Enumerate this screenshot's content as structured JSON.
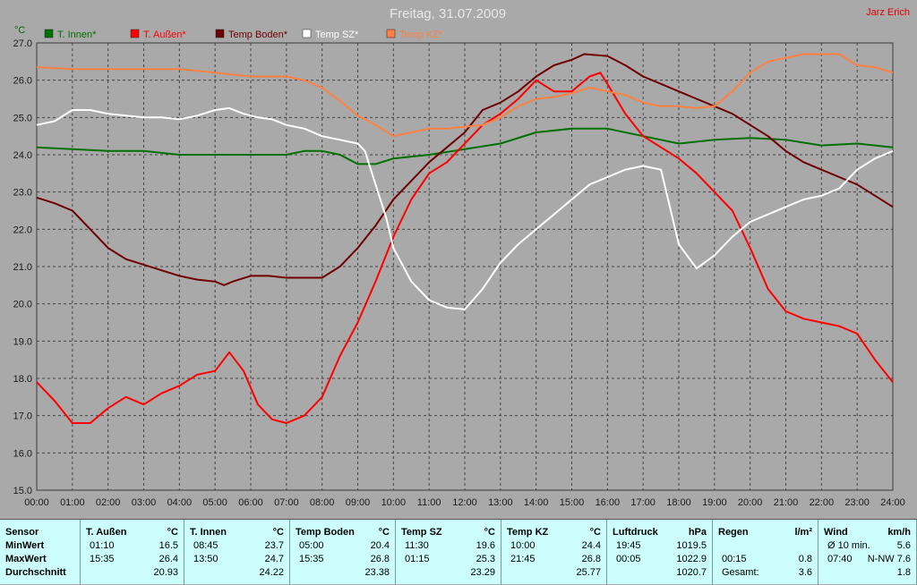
{
  "title": "Freitag, 31.07.2009",
  "author": "Jarz Erich",
  "chart_data": {
    "type": "line",
    "title": "Freitag, 31.07.2009",
    "ylabel": "°C",
    "xlabel": "",
    "ylim": [
      15.0,
      27.0
    ],
    "xlim": [
      0,
      24
    ],
    "grid": true,
    "legend_position": "top",
    "y_ticks": [
      "15.0",
      "16.0",
      "17.0",
      "18.0",
      "19.0",
      "20.0",
      "21.0",
      "22.0",
      "23.0",
      "24.0",
      "25.0",
      "26.0",
      "27.0"
    ],
    "x_ticks": [
      "00:00",
      "01:00",
      "02:00",
      "03:00",
      "04:00",
      "05:00",
      "06:00",
      "07:00",
      "08:00",
      "09:00",
      "10:00",
      "11:00",
      "12:00",
      "13:00",
      "14:00",
      "15:00",
      "16:00",
      "17:00",
      "18:00",
      "19:00",
      "20:00",
      "21:00",
      "22:00",
      "23:00",
      "24:00"
    ],
    "series": [
      {
        "name": "T. Innen*",
        "color": "#007000",
        "x": [
          0,
          1,
          2,
          3,
          4,
          5,
          6,
          7,
          7.5,
          8,
          8.5,
          9,
          9.5,
          10,
          11,
          12,
          13,
          14,
          15,
          16,
          17,
          18,
          19,
          20,
          21,
          22,
          23,
          24
        ],
        "y": [
          24.2,
          24.15,
          24.1,
          24.1,
          24.0,
          24.0,
          24.0,
          24.0,
          24.1,
          24.1,
          24.0,
          23.75,
          23.75,
          23.9,
          24.0,
          24.15,
          24.3,
          24.6,
          24.7,
          24.7,
          24.5,
          24.3,
          24.4,
          24.45,
          24.4,
          24.25,
          24.3,
          24.2
        ]
      },
      {
        "name": "T. Außen*",
        "color": "#ff0000",
        "x": [
          0,
          0.5,
          1,
          1.5,
          2,
          2.5,
          3,
          3.5,
          4,
          4.5,
          5,
          5.4,
          5.8,
          6.2,
          6.6,
          7,
          7.5,
          8,
          8.5,
          9,
          9.5,
          10,
          10.5,
          11,
          11.5,
          12,
          12.5,
          13,
          13.5,
          14,
          14.5,
          15,
          15.5,
          15.8,
          16,
          16.5,
          17,
          17.5,
          18,
          18.5,
          19,
          19.5,
          20,
          20.5,
          21,
          21.5,
          22,
          22.5,
          23,
          23.5,
          24
        ],
        "y": [
          17.9,
          17.4,
          16.8,
          16.8,
          17.2,
          17.5,
          17.3,
          17.6,
          17.8,
          18.1,
          18.2,
          18.7,
          18.2,
          17.3,
          16.9,
          16.8,
          17.0,
          17.5,
          18.6,
          19.5,
          20.6,
          21.8,
          22.8,
          23.5,
          23.8,
          24.3,
          24.8,
          25.1,
          25.5,
          26.0,
          25.7,
          25.7,
          26.1,
          26.2,
          25.9,
          25.1,
          24.5,
          24.2,
          23.9,
          23.5,
          23.0,
          22.5,
          21.5,
          20.4,
          19.8,
          19.6,
          19.5,
          19.4,
          19.2,
          18.5,
          17.9
        ]
      },
      {
        "name": "Temp Boden*",
        "color": "#700000",
        "x": [
          0,
          0.5,
          1,
          1.5,
          2,
          2.5,
          3,
          3.5,
          4,
          4.5,
          5,
          5.25,
          5.5,
          6,
          6.5,
          7,
          7.5,
          8,
          8.5,
          9,
          9.5,
          10,
          10.5,
          11,
          11.5,
          12,
          12.5,
          13,
          13.5,
          14,
          14.5,
          15,
          15.35,
          16,
          16.5,
          17,
          17.5,
          18,
          18.5,
          19,
          19.5,
          20,
          20.5,
          21,
          21.5,
          22,
          22.5,
          23,
          23.5,
          24
        ],
        "y": [
          22.85,
          22.7,
          22.5,
          22.0,
          21.5,
          21.2,
          21.05,
          20.9,
          20.75,
          20.65,
          20.6,
          20.5,
          20.6,
          20.75,
          20.75,
          20.7,
          20.7,
          20.7,
          21.0,
          21.5,
          22.1,
          22.8,
          23.3,
          23.8,
          24.2,
          24.6,
          25.2,
          25.4,
          25.7,
          26.1,
          26.4,
          26.55,
          26.7,
          26.65,
          26.4,
          26.1,
          25.9,
          25.7,
          25.5,
          25.3,
          25.1,
          24.8,
          24.5,
          24.1,
          23.8,
          23.6,
          23.4,
          23.2,
          22.9,
          22.6
        ]
      },
      {
        "name": "Temp SZ*",
        "color": "#ffffff",
        "x": [
          0,
          0.5,
          1,
          1.5,
          2,
          2.5,
          3,
          3.5,
          4,
          4.5,
          5,
          5.4,
          5.8,
          6.2,
          6.6,
          7,
          7.5,
          8,
          8.5,
          9,
          9.2,
          9.5,
          9.8,
          10,
          10.5,
          11,
          11.5,
          12,
          12.5,
          13,
          13.5,
          14,
          14.5,
          15,
          15.5,
          16,
          16.5,
          17,
          17.5,
          18,
          18.5,
          19,
          19.5,
          20,
          20.5,
          21,
          21.5,
          22,
          22.5,
          23,
          23.5,
          24
        ],
        "y": [
          24.8,
          24.9,
          25.2,
          25.2,
          25.1,
          25.05,
          25.0,
          25.0,
          24.95,
          25.05,
          25.2,
          25.25,
          25.1,
          25.0,
          24.95,
          24.8,
          24.7,
          24.5,
          24.4,
          24.3,
          24.1,
          23.2,
          22.3,
          21.5,
          20.6,
          20.1,
          19.9,
          19.85,
          20.4,
          21.1,
          21.6,
          22.0,
          22.4,
          22.8,
          23.2,
          23.4,
          23.6,
          23.7,
          23.6,
          21.6,
          20.95,
          21.3,
          21.8,
          22.2,
          22.4,
          22.6,
          22.8,
          22.9,
          23.1,
          23.6,
          23.9,
          24.1
        ]
      },
      {
        "name": "Temp KZ*",
        "color": "#ff8040",
        "x": [
          0,
          1,
          2,
          3,
          4,
          5,
          6,
          7,
          7.5,
          8,
          8.5,
          9,
          9.5,
          10,
          10.5,
          11,
          11.5,
          12,
          12.5,
          13,
          13.5,
          14,
          14.5,
          15,
          15.5,
          16,
          16.5,
          17,
          17.5,
          18,
          18.5,
          19,
          19.5,
          20,
          20.5,
          21,
          21.5,
          22,
          22.5,
          23,
          23.5,
          24
        ],
        "y": [
          26.35,
          26.3,
          26.3,
          26.3,
          26.3,
          26.2,
          26.1,
          26.1,
          26.0,
          25.8,
          25.45,
          25.05,
          24.8,
          24.5,
          24.6,
          24.7,
          24.7,
          24.75,
          24.8,
          25.0,
          25.3,
          25.5,
          25.55,
          25.65,
          25.8,
          25.7,
          25.6,
          25.4,
          25.3,
          25.3,
          25.25,
          25.3,
          25.7,
          26.2,
          26.5,
          26.6,
          26.7,
          26.7,
          26.7,
          26.4,
          26.35,
          26.2
        ]
      }
    ]
  },
  "stats": {
    "row_labels": {
      "header": "Sensor",
      "min": "MinWert",
      "max": "MaxWert",
      "avg": "Durchschnitt"
    },
    "columns": [
      {
        "name": "T. Außen",
        "unit": "°C",
        "min_time": "01:10",
        "min_val": "16.5",
        "max_time": "15:35",
        "max_val": "26.4",
        "avg": "20.93"
      },
      {
        "name": "T. Innen",
        "unit": "°C",
        "min_time": "08:45",
        "min_val": "23.7",
        "max_time": "13:50",
        "max_val": "24.7",
        "avg": "24.22"
      },
      {
        "name": "Temp Boden",
        "unit": "°C",
        "min_time": "05:00",
        "min_val": "20.4",
        "max_time": "15:35",
        "max_val": "26.8",
        "avg": "23.38"
      },
      {
        "name": "Temp SZ",
        "unit": "°C",
        "min_time": "11:30",
        "min_val": "19.6",
        "max_time": "01:15",
        "max_val": "25.3",
        "avg": "23.29"
      },
      {
        "name": "Temp KZ",
        "unit": "°C",
        "min_time": "10:00",
        "min_val": "24.4",
        "max_time": "21:45",
        "max_val": "26.8",
        "avg": "25.77"
      },
      {
        "name": "Luftdruck",
        "unit": "hPa",
        "min_time": "19:45",
        "min_val": "1019.5",
        "max_time": "00:05",
        "max_val": "1022.9",
        "avg": "1020.7"
      },
      {
        "name": "Regen",
        "unit": "l/m²",
        "min_time": "",
        "min_val": "",
        "max_time": "00:15",
        "max_val": "0.8",
        "avg_label": "Gesamt:",
        "avg": "3.6"
      },
      {
        "name": "Wind",
        "unit": "km/h",
        "min_time": "Ø 10 min.",
        "min_val": "5.6",
        "max_time": "07:40",
        "max_val": "N-NW 7.6",
        "avg": "1.8"
      }
    ]
  }
}
